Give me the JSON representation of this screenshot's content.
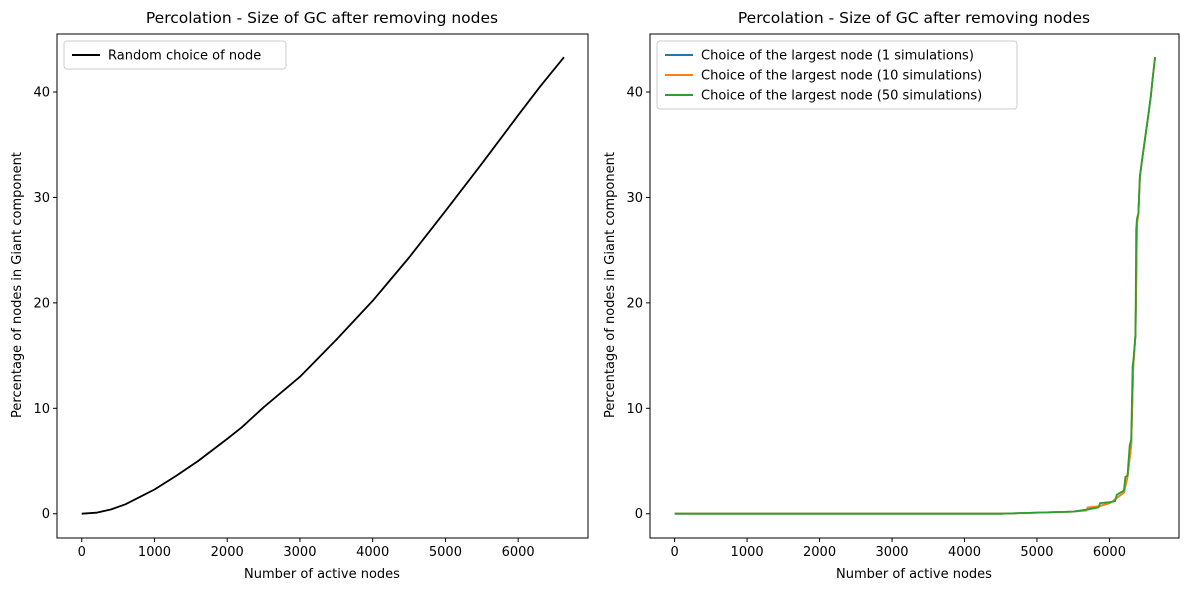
{
  "chart_data": [
    {
      "type": "line",
      "title": "Percolation - Size of GC after removing nodes",
      "xlabel": "Number of active nodes",
      "ylabel": "Percentage of nodes in Giant component",
      "xlim": [
        -340,
        6960
      ],
      "ylim": [
        -2.3,
        45.5
      ],
      "xticks": [
        0,
        1000,
        2000,
        3000,
        4000,
        5000,
        6000
      ],
      "yticks": [
        0,
        10,
        20,
        30,
        40
      ],
      "legend_position": "upper left",
      "series": [
        {
          "name": "Random choice of node",
          "color": "#000000",
          "x": [
            0,
            200,
            400,
            600,
            800,
            1000,
            1300,
            1600,
            2000,
            2200,
            2500,
            3000,
            3500,
            4000,
            4500,
            5000,
            5500,
            6000,
            6300,
            6630
          ],
          "y": [
            0,
            0.1,
            0.4,
            0.9,
            1.6,
            2.3,
            3.6,
            5.0,
            7.1,
            8.2,
            10.1,
            13.0,
            16.5,
            20.2,
            24.3,
            28.7,
            33.2,
            37.8,
            40.5,
            43.3
          ]
        },
        {
          "name": "Choice of the largest node (1 simulations)",
          "color": "#1f77b4",
          "x": [
            0,
            4500,
            5500,
            5700,
            5850,
            6000,
            6050,
            6100,
            6200,
            6250,
            6300,
            6330,
            6360,
            6380,
            6400,
            6420,
            6450,
            6480,
            6510,
            6540,
            6570,
            6600,
            6630
          ],
          "y": [
            0,
            0,
            0.2,
            0.4,
            0.7,
            1.0,
            1.2,
            1.5,
            2.0,
            3.5,
            6.5,
            14.0,
            17.0,
            27.5,
            28.5,
            32.0,
            33.5,
            35.0,
            36.5,
            38.0,
            39.5,
            41.5,
            43.3
          ]
        },
        {
          "name": "Choice of the largest node (10 simulations)",
          "color": "#ff7f0e",
          "x": [
            0,
            4500,
            5500,
            5680,
            5700,
            5850,
            6000,
            6050,
            6100,
            6200,
            6250,
            6300,
            6330,
            6360,
            6380,
            6400,
            6420,
            6450,
            6480,
            6510,
            6540,
            6570,
            6600,
            6630
          ],
          "y": [
            0,
            0,
            0.2,
            0.3,
            0.6,
            0.7,
            1.0,
            1.2,
            1.5,
            2.0,
            3.5,
            6.5,
            14.0,
            17.0,
            27.5,
            28.5,
            32.0,
            33.5,
            35.0,
            36.5,
            38.0,
            39.5,
            41.5,
            43.3
          ]
        },
        {
          "name": "Choice of the largest node (50 simulations)",
          "color": "#2ca02c",
          "x": [
            0,
            4500,
            5500,
            5700,
            5850,
            5870,
            6000,
            6080,
            6100,
            6150,
            6200,
            6220,
            6250,
            6280,
            6300,
            6320,
            6330,
            6360,
            6370,
            6380,
            6400,
            6420,
            6450,
            6480,
            6510,
            6540,
            6570,
            6600,
            6630
          ],
          "y": [
            0,
            0,
            0.2,
            0.4,
            0.6,
            1.0,
            1.1,
            1.2,
            1.8,
            2.0,
            2.2,
            3.5,
            3.6,
            6.5,
            7.0,
            14.0,
            14.5,
            17.0,
            27.0,
            28.0,
            28.5,
            32.0,
            33.5,
            35.0,
            36.5,
            38.0,
            39.5,
            41.5,
            43.3
          ]
        }
      ]
    },
    {
      "type": "line",
      "title": "Percolation - Size of GC after removing nodes",
      "xlabel": "Number of active nodes",
      "ylabel": "Percentage of nodes in Giant component",
      "xlim": [
        -340,
        6960
      ],
      "ylim": [
        -2.3,
        45.5
      ],
      "xticks": [
        0,
        1000,
        2000,
        3000,
        4000,
        5000,
        6000
      ],
      "yticks": [
        0,
        10,
        20,
        30,
        40
      ],
      "legend_position": "upper left",
      "series": []
    }
  ]
}
